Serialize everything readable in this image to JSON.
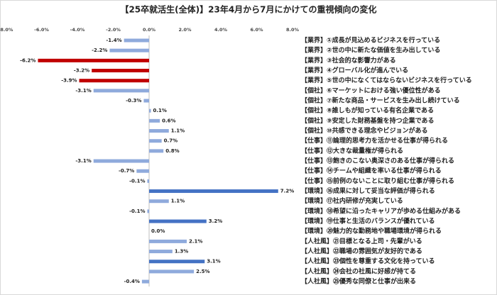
{
  "chart_data": {
    "type": "bar",
    "orientation": "horizontal",
    "title": "【25卒就活生(全体)】23年4月から7月にかけての重視傾向の変化",
    "categories": [
      "【業界】①成長が見込めるビジネスを行っている",
      "【業界】②世の中に新たな価値を生み出している",
      "【業界】③社会的な影響力がある",
      "【業界】④グローバル化が進んでいる",
      "【業界】⑤世の中になくてはならないビジネスを行っている",
      "【個社】⑥マーケットにおける強い優位性がある",
      "【個社】⑦新たな商品・サービスを生み出し続けている",
      "【個社】⑧誰しもが知っている有名企業である",
      "【個社】⑨安定した財務基盤を持つ企業である",
      "【個社】⑩共感できる理念やビジョンがある",
      "【仕事】⑪論理的思考力を活かせる仕事が得られる",
      "【仕事】⑫大きな裁量権が得られる",
      "【仕事】⑬飽きのこない奥深さのある仕事が得られる",
      "【仕事】⑭チームや組織を率いる仕事が得られる",
      "【仕事】⑮前例のないことに取り組む仕事が得られる",
      "【環境】⑯成果に対して妥当な評価が得られる",
      "【環境】⑰社内研修が充実している",
      "【環境】⑱希望に沿ったキャリアが歩める仕組みがある",
      "【環境】⑲仕事と生活のバランスが優れている",
      "【環境】⑳魅力的な勤務地や職場環境が得られる",
      "【人社風】㉑目標となる上司・先輩がいる",
      "【人社風】㉒職場の雰囲気が友好的である",
      "【人社風】㉓個性を尊重する文化を持っている",
      "【人社風】㉔会社の社風に好感が持てる",
      "【人社風】㉕優秀な同僚と仕事が出来る"
    ],
    "values": [
      -1.4,
      -2.2,
      -6.2,
      -3.2,
      -3.9,
      -3.1,
      -0.3,
      0.1,
      0.6,
      1.1,
      0.7,
      0.8,
      -3.1,
      -0.7,
      -0.1,
      7.2,
      1.1,
      -0.1,
      3.2,
      0.0,
      2.1,
      1.3,
      3.1,
      2.5,
      -0.4
    ],
    "value_labels": [
      "-1.4%",
      "-2.2%",
      "-6.2%",
      "-3.2%",
      "-3.9%",
      "-3.1%",
      "-0.3%",
      "0.1%",
      "0.6%",
      "1.1%",
      "0.7%",
      "0.8%",
      "-3.1%",
      "-0.7%",
      "-0.1%",
      "7.2%",
      "1.1%",
      "-0.1%",
      "3.2%",
      "0.0%",
      "2.1%",
      "1.3%",
      "3.1%",
      "2.5%",
      "-0.4%"
    ],
    "colors": [
      "#8faadc",
      "#8faadc",
      "#c00000",
      "#c00000",
      "#c00000",
      "#8faadc",
      "#8faadc",
      "#8faadc",
      "#8faadc",
      "#8faadc",
      "#8faadc",
      "#8faadc",
      "#8faadc",
      "#8faadc",
      "#8faadc",
      "#4472c4",
      "#8faadc",
      "#8faadc",
      "#4472c4",
      "#8faadc",
      "#8faadc",
      "#8faadc",
      "#4472c4",
      "#8faadc",
      "#8faadc"
    ],
    "xlim": [
      -8,
      8
    ],
    "xticks": [
      {
        "value": -8,
        "label": "-8.0%"
      },
      {
        "value": -6,
        "label": "-6.0%"
      },
      {
        "value": -4,
        "label": "-4.0%"
      },
      {
        "value": -2,
        "label": "-2.0%"
      },
      {
        "value": 0,
        "label": "0.0%"
      },
      {
        "value": 2,
        "label": "2.0%"
      },
      {
        "value": 4,
        "label": "4.0%"
      },
      {
        "value": 6,
        "label": "6.0%"
      },
      {
        "value": 8,
        "label": "8.0%"
      }
    ]
  }
}
